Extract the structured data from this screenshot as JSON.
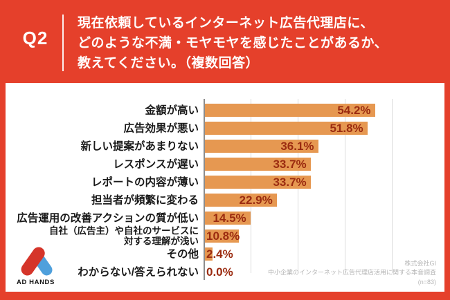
{
  "header": {
    "q_label": "Q2",
    "question_lines": [
      "現在依頼しているインターネット広告代理店に、",
      "どのような不満・モヤモヤを感じたことがあるか、",
      "教えてください。（複数回答）"
    ]
  },
  "chart_data": {
    "type": "bar",
    "orientation": "horizontal",
    "title": "",
    "xlabel": "",
    "ylabel": "",
    "categories": [
      "金額が高い",
      "広告効果が悪い",
      "新しい提案があまりない",
      "レスポンスが遅い",
      "レポートの内容が薄い",
      "担当者が頻繁に変わる",
      "広告運用の改善アクションの質が低い",
      "自社（広告主）や自社のサービスに\n対する理解が浅い",
      "その他",
      "わからない/答えられない"
    ],
    "values": [
      54.2,
      51.8,
      36.1,
      33.7,
      33.7,
      22.9,
      14.5,
      10.8,
      2.4,
      0.0
    ],
    "value_labels": [
      "54.2%",
      "51.8%",
      "36.1%",
      "33.7%",
      "33.7%",
      "22.9%",
      "14.5%",
      "10.8%",
      "2.4%",
      "0.0%"
    ],
    "xlim": [
      0,
      66
    ],
    "gridline_values": [
      15,
      30,
      45,
      60
    ],
    "grid": true,
    "legend": false
  },
  "footer": {
    "logo_text": "AD HANDS",
    "source_lines": [
      "株式会社GI",
      "中小企業のインターネット広告代理店活用に関する本音調査",
      "(n=83)"
    ]
  },
  "colors": {
    "background_red": "#E5402B",
    "panel_white": "#FFFFFF",
    "bar_orange": "#E69851",
    "value_text": "#9B2B10",
    "category_text": "#1A1A1A",
    "gridline": "#DBDBDB",
    "axis": "#8C8C8C",
    "source_text": "#B5B5B5",
    "logo_red": "#D5352A",
    "logo_blue": "#4FA0DC"
  }
}
